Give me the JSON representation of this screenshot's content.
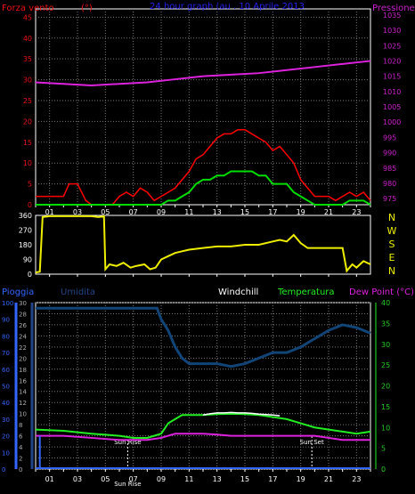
{
  "panel1": {
    "title": "24 hour graph (au . 10 Aprile 2013",
    "left_label": "Forza vento",
    "left_unit": "(°)",
    "right_label": "Pressione",
    "colors": {
      "title": "#2222ee",
      "left": "#ee1111",
      "right": "#cc22cc",
      "gust": "#ff0000",
      "wind": "#00dd00",
      "pressure": "#dd22dd",
      "grid": "#777777",
      "frame": "#ffffff"
    }
  },
  "panel2": {
    "compass": [
      "N",
      "W",
      "S",
      "E",
      "N"
    ],
    "colors": {
      "direction": "#eeee00",
      "compass": "#eeee00"
    }
  },
  "panel3": {
    "labels": {
      "rain": "Pioggia",
      "humidity": "Umidita",
      "windchill": "Windchill",
      "temperature": "Temperatura",
      "dewpoint": "Dew Point (°C)"
    },
    "colors": {
      "rain": "#3366ff",
      "humidity": "#224488",
      "humidity_line": "#114477",
      "windchill": "#ffffff",
      "temperature": "#22ee22",
      "dewpoint": "#dd22dd",
      "temp_axis": "#22cc22"
    },
    "sunrise": "Sun Rise",
    "sunset": "Sun Set"
  },
  "chart_data": [
    {
      "type": "line",
      "title": "24 hour graph (au . 10 Aprile 2013",
      "x_ticks": [
        "01",
        "03",
        "05",
        "07",
        "09",
        "11",
        "13",
        "15",
        "17",
        "19",
        "21",
        "23"
      ],
      "y_left": {
        "label": "Forza vento (°)",
        "ticks": [
          0,
          5,
          10,
          15,
          20,
          25,
          30,
          35,
          40,
          45
        ],
        "ylim": [
          0,
          47
        ]
      },
      "y_right": {
        "label": "Pressione",
        "ticks": [
          975,
          980,
          985,
          990,
          995,
          1000,
          1005,
          1010,
          1015,
          1020,
          1025,
          1030,
          1035
        ],
        "ylim": [
          973,
          1037
        ]
      },
      "grid": true,
      "series": [
        {
          "name": "gust",
          "axis": "left",
          "x": [
            0,
            1,
            2,
            2.4,
            3,
            3.6,
            4,
            4.5,
            5,
            5.5,
            6,
            6.5,
            7,
            7.5,
            8,
            8.5,
            9,
            9.5,
            10,
            10.5,
            11,
            11.5,
            12,
            12.5,
            13,
            13.5,
            14,
            14.5,
            15,
            15.5,
            16,
            16.5,
            17,
            17.5,
            18,
            18.5,
            19,
            19.5,
            20,
            20.5,
            21,
            21.5,
            22,
            22.5,
            23,
            23.5,
            24
          ],
          "y": [
            2,
            2,
            2,
            5,
            5,
            1,
            0,
            0,
            0,
            0,
            2,
            3,
            2,
            4,
            3,
            1,
            2,
            3,
            4,
            6,
            8,
            11,
            12,
            14,
            16,
            17,
            17,
            18,
            18,
            17,
            16,
            15,
            13,
            14,
            12,
            10,
            6,
            4,
            2,
            2,
            2,
            1,
            2,
            3,
            2,
            3,
            1
          ]
        },
        {
          "name": "wind",
          "axis": "left",
          "x": [
            0,
            2,
            4,
            6,
            8,
            8.5,
            9,
            9.5,
            10,
            10.5,
            11,
            11.5,
            12,
            12.5,
            13,
            13.5,
            14,
            14.5,
            15,
            15.5,
            16,
            16.5,
            17,
            17.5,
            18,
            18.5,
            19,
            19.5,
            20,
            21,
            22,
            22.5,
            23,
            23.5,
            24
          ],
          "y": [
            0,
            0,
            0,
            0,
            0,
            0,
            0,
            1,
            1,
            2,
            3,
            5,
            6,
            6,
            7,
            7,
            8,
            8,
            8,
            8,
            7,
            7,
            5,
            5,
            5,
            3,
            2,
            1,
            0,
            0,
            0,
            1,
            1,
            1,
            0
          ]
        },
        {
          "name": "Pressione",
          "axis": "right",
          "x": [
            0,
            2,
            4,
            6,
            8,
            10,
            12,
            14,
            16,
            18,
            20,
            22,
            24
          ],
          "y": [
            1013,
            1012.5,
            1012,
            1012.5,
            1013,
            1014,
            1015,
            1015.5,
            1016,
            1017,
            1018,
            1019,
            1020
          ]
        }
      ]
    },
    {
      "type": "line",
      "x_ticks": [
        "01",
        "03",
        "05",
        "07",
        "09",
        "11",
        "13",
        "15",
        "17",
        "19",
        "21",
        "23"
      ],
      "y": {
        "ticks": [
          0,
          90,
          180,
          270,
          360
        ],
        "ylim": [
          0,
          360
        ]
      },
      "series": [
        {
          "name": "direction",
          "x": [
            0,
            0.3,
            0.5,
            1,
            2,
            3,
            4,
            4.5,
            4.9,
            5,
            5.3,
            5.8,
            6.3,
            6.8,
            7.2,
            7.8,
            8.2,
            8.6,
            9,
            9.5,
            10,
            10.5,
            11,
            12,
            13,
            14,
            15,
            16,
            17,
            17.5,
            18,
            18.5,
            19,
            19.5,
            20,
            21,
            22,
            22.3,
            22.7,
            23,
            23.5,
            24
          ],
          "y": [
            10,
            15,
            350,
            355,
            355,
            355,
            355,
            350,
            355,
            30,
            60,
            50,
            70,
            40,
            50,
            60,
            30,
            40,
            90,
            110,
            130,
            140,
            150,
            160,
            170,
            170,
            180,
            180,
            200,
            210,
            200,
            240,
            190,
            160,
            160,
            160,
            160,
            20,
            60,
            40,
            80,
            60
          ]
        }
      ]
    },
    {
      "type": "line",
      "x_ticks": [
        "01",
        "03",
        "05",
        "07",
        "09",
        "11",
        "13",
        "15",
        "17",
        "19",
        "21",
        "23"
      ],
      "y_left_rain": {
        "label": "Pioggia",
        "ticks": [
          0,
          10,
          20,
          30,
          40,
          50,
          60,
          70,
          80,
          90,
          100
        ],
        "ylim": [
          0,
          100
        ]
      },
      "y_left_humidity": {
        "label": "Umidita",
        "ticks": [
          0,
          2,
          4,
          6,
          8,
          10,
          12,
          14,
          16,
          18,
          20,
          22,
          24,
          26,
          28,
          30
        ],
        "ylim": [
          0,
          30
        ]
      },
      "y_right": {
        "label": "Dew Point (°C)",
        "ticks": [
          0,
          5,
          10,
          15,
          20,
          25,
          30,
          35,
          40
        ],
        "ylim": [
          0,
          40
        ]
      },
      "grid": true,
      "series": [
        {
          "name": "Umidita",
          "axis": "left_humidity",
          "x": [
            0,
            2,
            4,
            6,
            8,
            8.7,
            9,
            9.5,
            10,
            10.5,
            11,
            12,
            13,
            14,
            15,
            16,
            17,
            18,
            19,
            20,
            21,
            22,
            23,
            24
          ],
          "y": [
            29,
            29,
            29,
            29,
            29,
            29,
            27,
            25,
            22,
            20,
            19,
            19,
            19,
            18.5,
            19,
            20,
            21,
            21,
            22,
            23.5,
            25,
            26,
            25.5,
            24.5
          ]
        },
        {
          "name": "Windchill",
          "axis": "right",
          "x": [
            12,
            12.5,
            13,
            13.5,
            14,
            14.5,
            15,
            15.5,
            16,
            16.5,
            17,
            17.5
          ],
          "y": [
            13,
            13.3,
            13.5,
            13.5,
            13.6,
            13.5,
            13.5,
            13.4,
            13.2,
            13.1,
            13,
            12.8
          ]
        },
        {
          "name": "Temperatura",
          "axis": "right",
          "x": [
            0,
            2,
            4,
            6,
            7,
            8,
            9,
            9.5,
            10,
            10.5,
            11,
            12,
            13,
            14,
            15,
            16,
            17,
            18,
            19,
            20,
            21,
            22,
            23,
            24
          ],
          "y": [
            9.5,
            9.2,
            8.5,
            8,
            7.5,
            7.5,
            8.5,
            11,
            12,
            13,
            13,
            13,
            13.2,
            13.3,
            13.2,
            13,
            12.5,
            12,
            11,
            10,
            9.5,
            9,
            8.5,
            9
          ]
        },
        {
          "name": "Dew Point",
          "axis": "right",
          "x": [
            0,
            2,
            4,
            6,
            7,
            8,
            9,
            9.5,
            10,
            11,
            12,
            13,
            14,
            15,
            16,
            17,
            18,
            19,
            20,
            21,
            22,
            23,
            24
          ],
          "y": [
            8,
            8,
            7.5,
            7,
            7,
            7,
            7.5,
            8,
            8.5,
            8.5,
            8.5,
            8.3,
            8,
            8,
            8,
            8,
            8,
            8,
            8,
            7.5,
            7,
            7,
            7
          ]
        },
        {
          "name": "Pioggia",
          "axis": "left_rain",
          "x": [
            0,
            24
          ],
          "y": [
            0,
            0
          ]
        }
      ]
    }
  ]
}
